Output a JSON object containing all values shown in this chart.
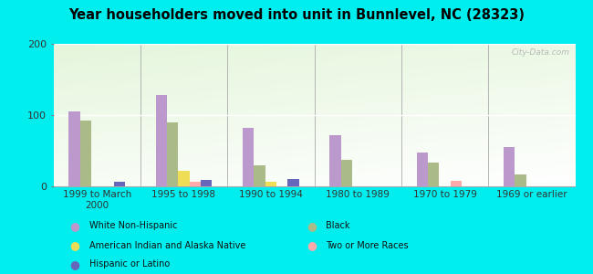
{
  "title": "Year householders moved into unit in Bunnlevel, NC (28323)",
  "categories": [
    "1999 to March\n2000",
    "1995 to 1998",
    "1990 to 1994",
    "1980 to 1989",
    "1970 to 1979",
    "1969 or earlier"
  ],
  "series": {
    "White Non-Hispanic": [
      105,
      128,
      82,
      72,
      48,
      55
    ],
    "Black": [
      92,
      90,
      30,
      37,
      33,
      17
    ],
    "American Indian and Alaska Native": [
      0,
      22,
      7,
      0,
      0,
      0
    ],
    "Two or More Races": [
      0,
      6,
      0,
      0,
      8,
      0
    ],
    "Hispanic or Latino": [
      7,
      9,
      10,
      0,
      0,
      0
    ]
  },
  "colors": {
    "White Non-Hispanic": "#bb99cc",
    "Black": "#aabb88",
    "American Indian and Alaska Native": "#eedd55",
    "Two or More Races": "#ffaaaa",
    "Hispanic or Latino": "#6666bb"
  },
  "ylim": [
    0,
    200
  ],
  "yticks": [
    0,
    100,
    200
  ],
  "background_color": "#00eeee",
  "watermark": "City-Data.com",
  "legend": [
    [
      "White Non-Hispanic",
      "#bb99cc"
    ],
    [
      "Black",
      "#aabb88"
    ],
    [
      "American Indian and Alaska Native",
      "#eedd55"
    ],
    [
      "Two or More Races",
      "#ffaaaa"
    ],
    [
      "Hispanic or Latino",
      "#6666bb"
    ]
  ]
}
